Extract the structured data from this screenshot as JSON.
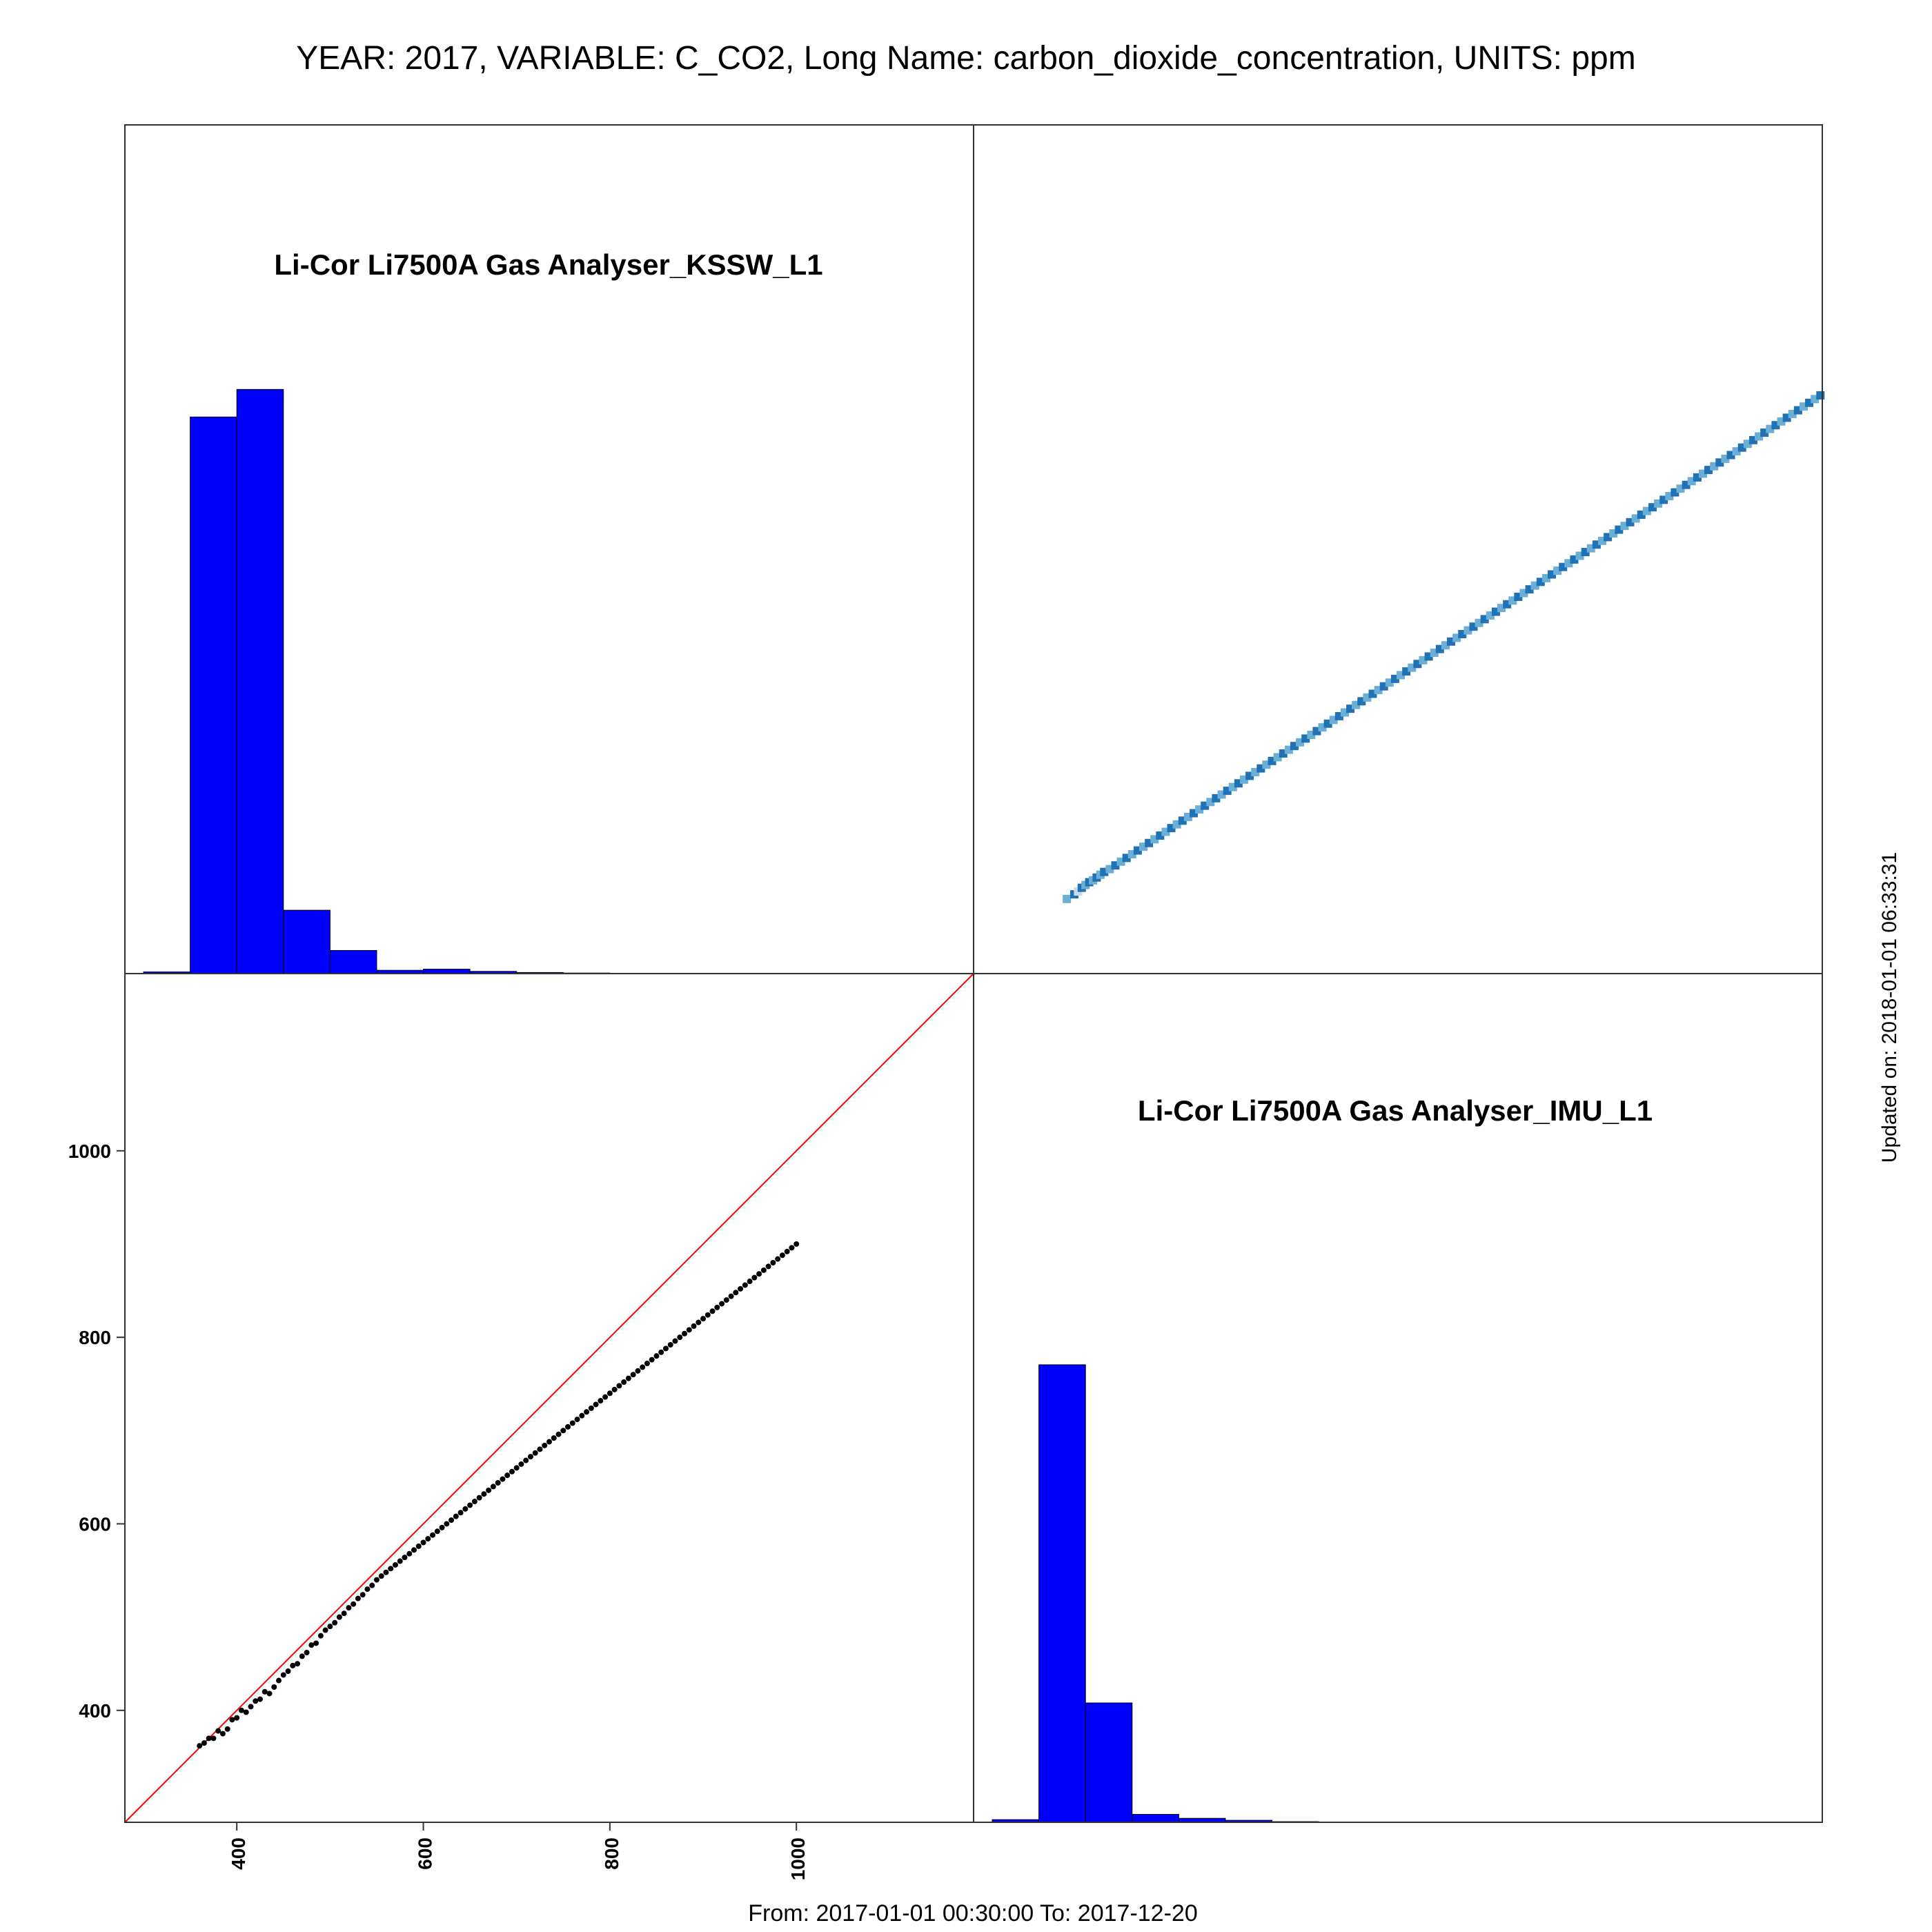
{
  "figure": {
    "title": "YEAR: 2017, VARIABLE: C_CO2, Long Name: carbon_dioxide_concentration, UNITS: ppm",
    "footer": "From: 2017-01-01 00:30:00 To: 2017-12-20",
    "updated": "Updated on: 2018-01-01 06:33:31"
  },
  "chart_data": [
    {
      "type": "bar",
      "panel": "top-left",
      "title": "Li-Cor Li7500A Gas Analyser_KSSW_L1",
      "bin_edges": [
        300,
        350,
        400,
        450,
        500,
        550,
        600,
        650,
        700,
        750,
        800,
        850,
        900,
        950
      ],
      "values": [
        0.3,
        101,
        106,
        11.5,
        4.2,
        0.6,
        0.8,
        0.4,
        0.2,
        0.1,
        0.05,
        0.05,
        0.05
      ],
      "xlim": [
        280,
        1190
      ],
      "ylim": [
        0,
        154
      ],
      "color": "#0000ff"
    },
    {
      "type": "heatmap",
      "panel": "top-right",
      "xlim": [
        280,
        1190
      ],
      "ylim": [
        280,
        1190
      ],
      "colormap": [
        "#deebf7",
        "#08306b",
        "#3f007d"
      ],
      "cells": [
        [
          380,
          360,
          2
        ],
        [
          388,
          365,
          3
        ],
        [
          392,
          368,
          1
        ],
        [
          396,
          372,
          3
        ],
        [
          400,
          375,
          2
        ],
        [
          404,
          378,
          3
        ],
        [
          408,
          380,
          2
        ],
        [
          412,
          383,
          3
        ],
        [
          416,
          386,
          2
        ],
        [
          420,
          389,
          3
        ],
        [
          426,
          392,
          2
        ],
        [
          432,
          396,
          3
        ],
        [
          438,
          400,
          2
        ],
        [
          444,
          404,
          3
        ],
        [
          450,
          408,
          2
        ],
        [
          456,
          412,
          3
        ],
        [
          462,
          416,
          2
        ],
        [
          468,
          420,
          3
        ],
        [
          474,
          424,
          2
        ],
        [
          480,
          428,
          3
        ],
        [
          486,
          432,
          2
        ],
        [
          492,
          436,
          3
        ],
        [
          498,
          440,
          2
        ],
        [
          504,
          444,
          3
        ],
        [
          510,
          448,
          2
        ],
        [
          516,
          452,
          3
        ],
        [
          522,
          456,
          2
        ],
        [
          528,
          460,
          3
        ],
        [
          534,
          464,
          2
        ],
        [
          540,
          468,
          3
        ],
        [
          546,
          472,
          2
        ],
        [
          552,
          476,
          3
        ],
        [
          558,
          480,
          2
        ],
        [
          564,
          484,
          3
        ],
        [
          570,
          488,
          2
        ],
        [
          576,
          492,
          3
        ],
        [
          582,
          496,
          2
        ],
        [
          588,
          500,
          3
        ],
        [
          594,
          504,
          2
        ],
        [
          600,
          508,
          3
        ],
        [
          606,
          512,
          2
        ],
        [
          612,
          516,
          3
        ],
        [
          618,
          520,
          2
        ],
        [
          624,
          524,
          3
        ],
        [
          630,
          528,
          2
        ],
        [
          636,
          532,
          3
        ],
        [
          642,
          536,
          2
        ],
        [
          648,
          540,
          3
        ],
        [
          654,
          544,
          2
        ],
        [
          660,
          548,
          3
        ],
        [
          666,
          552,
          2
        ],
        [
          672,
          556,
          3
        ],
        [
          678,
          560,
          2
        ],
        [
          684,
          564,
          3
        ],
        [
          690,
          568,
          2
        ],
        [
          696,
          572,
          3
        ],
        [
          702,
          576,
          2
        ],
        [
          708,
          580,
          3
        ],
        [
          714,
          584,
          2
        ],
        [
          720,
          588,
          3
        ],
        [
          726,
          592,
          2
        ],
        [
          732,
          596,
          3
        ],
        [
          738,
          600,
          2
        ],
        [
          744,
          604,
          3
        ],
        [
          750,
          608,
          2
        ],
        [
          756,
          612,
          3
        ],
        [
          762,
          616,
          2
        ],
        [
          768,
          620,
          3
        ],
        [
          774,
          624,
          2
        ],
        [
          780,
          628,
          3
        ],
        [
          786,
          632,
          2
        ],
        [
          792,
          636,
          3
        ],
        [
          798,
          640,
          2
        ],
        [
          804,
          644,
          3
        ],
        [
          810,
          648,
          2
        ],
        [
          816,
          652,
          3
        ],
        [
          822,
          656,
          2
        ],
        [
          828,
          660,
          3
        ],
        [
          834,
          664,
          2
        ],
        [
          840,
          668,
          3
        ],
        [
          846,
          672,
          2
        ],
        [
          852,
          676,
          3
        ],
        [
          858,
          680,
          2
        ],
        [
          864,
          684,
          3
        ],
        [
          870,
          688,
          2
        ],
        [
          876,
          692,
          3
        ],
        [
          882,
          696,
          2
        ],
        [
          888,
          700,
          3
        ],
        [
          894,
          704,
          2
        ],
        [
          900,
          708,
          3
        ],
        [
          906,
          712,
          2
        ],
        [
          912,
          716,
          3
        ],
        [
          918,
          720,
          2
        ],
        [
          924,
          724,
          3
        ],
        [
          930,
          728,
          2
        ],
        [
          936,
          732,
          3
        ],
        [
          942,
          736,
          2
        ],
        [
          948,
          740,
          3
        ],
        [
          954,
          744,
          2
        ],
        [
          960,
          748,
          3
        ],
        [
          966,
          752,
          2
        ],
        [
          972,
          756,
          3
        ],
        [
          978,
          760,
          2
        ],
        [
          984,
          764,
          3
        ],
        [
          990,
          768,
          2
        ],
        [
          996,
          772,
          3
        ],
        [
          1002,
          776,
          2
        ],
        [
          1008,
          780,
          3
        ],
        [
          1014,
          784,
          2
        ],
        [
          1020,
          788,
          3
        ],
        [
          1026,
          792,
          2
        ],
        [
          1032,
          796,
          3
        ],
        [
          1038,
          800,
          2
        ],
        [
          1044,
          804,
          3
        ],
        [
          1050,
          808,
          2
        ],
        [
          1056,
          812,
          3
        ],
        [
          1062,
          816,
          2
        ],
        [
          1068,
          820,
          3
        ],
        [
          1074,
          824,
          2
        ],
        [
          1080,
          828,
          3
        ],
        [
          1086,
          832,
          2
        ],
        [
          1092,
          836,
          3
        ],
        [
          1098,
          840,
          2
        ],
        [
          1104,
          844,
          3
        ],
        [
          1110,
          848,
          2
        ],
        [
          1116,
          852,
          3
        ],
        [
          1122,
          856,
          2
        ],
        [
          1128,
          860,
          3
        ],
        [
          1134,
          864,
          2
        ],
        [
          1140,
          868,
          3
        ],
        [
          1146,
          872,
          2
        ],
        [
          1152,
          876,
          3
        ],
        [
          1158,
          880,
          2
        ],
        [
          1164,
          884,
          3
        ],
        [
          1170,
          888,
          2
        ],
        [
          1176,
          892,
          3
        ],
        [
          1182,
          896,
          2
        ],
        [
          1188,
          900,
          3
        ]
      ]
    },
    {
      "type": "scatter",
      "panel": "bottom-left",
      "xlim": [
        280,
        1190
      ],
      "ylim": [
        280,
        1190
      ],
      "xticks": [
        400,
        600,
        800,
        1000
      ],
      "yticks": [
        400,
        600,
        800,
        1000
      ],
      "reference_line": "y = x",
      "points": [
        [
          360,
          362
        ],
        [
          365,
          365
        ],
        [
          370,
          370
        ],
        [
          375,
          370
        ],
        [
          380,
          378
        ],
        [
          385,
          375
        ],
        [
          390,
          380
        ],
        [
          395,
          390
        ],
        [
          400,
          392
        ],
        [
          405,
          400
        ],
        [
          410,
          398
        ],
        [
          415,
          404
        ],
        [
          420,
          410
        ],
        [
          425,
          412
        ],
        [
          430,
          420
        ],
        [
          435,
          418
        ],
        [
          440,
          425
        ],
        [
          445,
          432
        ],
        [
          450,
          438
        ],
        [
          455,
          442
        ],
        [
          460,
          448
        ],
        [
          465,
          450
        ],
        [
          470,
          458
        ],
        [
          475,
          462
        ],
        [
          480,
          470
        ],
        [
          485,
          472
        ],
        [
          490,
          480
        ],
        [
          495,
          486
        ],
        [
          500,
          490
        ],
        [
          505,
          494
        ],
        [
          510,
          500
        ],
        [
          515,
          504
        ],
        [
          520,
          510
        ],
        [
          525,
          514
        ],
        [
          530,
          520
        ],
        [
          535,
          524
        ],
        [
          540,
          530
        ],
        [
          545,
          534
        ],
        [
          550,
          540
        ],
        [
          555,
          544
        ],
        [
          560,
          548
        ],
        [
          565,
          552
        ],
        [
          570,
          556
        ],
        [
          575,
          560
        ],
        [
          580,
          564
        ],
        [
          585,
          568
        ],
        [
          590,
          572
        ],
        [
          595,
          576
        ],
        [
          600,
          580
        ],
        [
          605,
          584
        ],
        [
          610,
          588
        ],
        [
          615,
          592
        ],
        [
          620,
          596
        ],
        [
          625,
          600
        ],
        [
          630,
          604
        ],
        [
          635,
          608
        ],
        [
          640,
          612
        ],
        [
          645,
          616
        ],
        [
          650,
          620
        ],
        [
          655,
          624
        ],
        [
          660,
          628
        ],
        [
          665,
          632
        ],
        [
          670,
          636
        ],
        [
          675,
          640
        ],
        [
          680,
          644
        ],
        [
          685,
          648
        ],
        [
          690,
          652
        ],
        [
          695,
          656
        ],
        [
          700,
          660
        ],
        [
          705,
          664
        ],
        [
          710,
          668
        ],
        [
          715,
          672
        ],
        [
          720,
          676
        ],
        [
          725,
          680
        ],
        [
          730,
          684
        ],
        [
          735,
          688
        ],
        [
          740,
          692
        ],
        [
          745,
          696
        ],
        [
          750,
          700
        ],
        [
          755,
          704
        ],
        [
          760,
          708
        ],
        [
          765,
          712
        ],
        [
          770,
          716
        ],
        [
          775,
          720
        ],
        [
          780,
          724
        ],
        [
          785,
          728
        ],
        [
          790,
          732
        ],
        [
          795,
          736
        ],
        [
          800,
          740
        ],
        [
          805,
          744
        ],
        [
          810,
          748
        ],
        [
          815,
          752
        ],
        [
          820,
          756
        ],
        [
          825,
          760
        ],
        [
          830,
          764
        ],
        [
          835,
          768
        ],
        [
          840,
          772
        ],
        [
          845,
          776
        ],
        [
          850,
          780
        ],
        [
          855,
          784
        ],
        [
          860,
          788
        ],
        [
          865,
          792
        ],
        [
          870,
          796
        ],
        [
          875,
          800
        ],
        [
          880,
          804
        ],
        [
          885,
          808
        ],
        [
          890,
          812
        ],
        [
          895,
          816
        ],
        [
          900,
          820
        ],
        [
          905,
          824
        ],
        [
          910,
          828
        ],
        [
          915,
          832
        ],
        [
          920,
          836
        ],
        [
          925,
          840
        ],
        [
          930,
          844
        ],
        [
          935,
          848
        ],
        [
          940,
          852
        ],
        [
          945,
          856
        ],
        [
          950,
          860
        ],
        [
          955,
          864
        ],
        [
          960,
          868
        ],
        [
          965,
          872
        ],
        [
          970,
          876
        ],
        [
          975,
          880
        ],
        [
          980,
          884
        ],
        [
          985,
          888
        ],
        [
          990,
          892
        ],
        [
          995,
          896
        ],
        [
          1000,
          900
        ]
      ]
    },
    {
      "type": "bar",
      "panel": "bottom-right",
      "title": "Li-Cor Li7500A Gas Analyser_IMU_L1",
      "bin_edges": [
        300,
        350,
        400,
        450,
        500,
        550,
        600,
        650,
        700
      ],
      "values": [
        0.4,
        69,
        18,
        1.2,
        0.6,
        0.3,
        0.1,
        0.05
      ],
      "xlim": [
        280,
        1190
      ],
      "ylim": [
        0,
        128
      ],
      "color": "#0000ff"
    }
  ]
}
